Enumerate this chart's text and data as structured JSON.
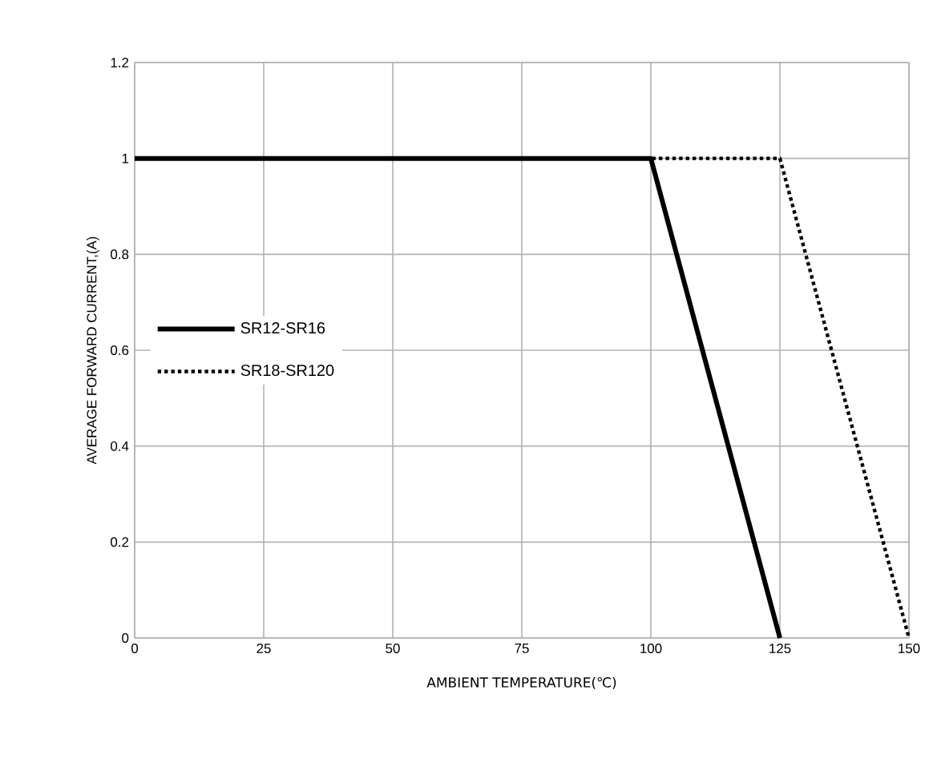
{
  "chart_data": {
    "type": "line",
    "xlabel": "AMBIENT TEMPERATURE(℃)",
    "ylabel": "AVERAGE FORWARD CURRENT,(A)",
    "xlim": [
      0,
      150
    ],
    "xticks": [
      0,
      25,
      50,
      75,
      100,
      125,
      150
    ],
    "ylim": [
      0,
      1.2
    ],
    "yticks": [
      0,
      0.2,
      0.4,
      0.6,
      0.8,
      1,
      1.2
    ],
    "grid": true,
    "legend": "left",
    "marker": "none",
    "series": [
      {
        "name": "SR12-SR16",
        "color": "#000000",
        "line_style": "solid",
        "x": [
          0,
          100,
          125
        ],
        "values": [
          1,
          1,
          0
        ]
      },
      {
        "name": "SR18-SR120",
        "color": "#000000",
        "line_style": "dotted",
        "x": [
          0,
          125,
          150
        ],
        "values": [
          1,
          1,
          0
        ]
      }
    ]
  }
}
